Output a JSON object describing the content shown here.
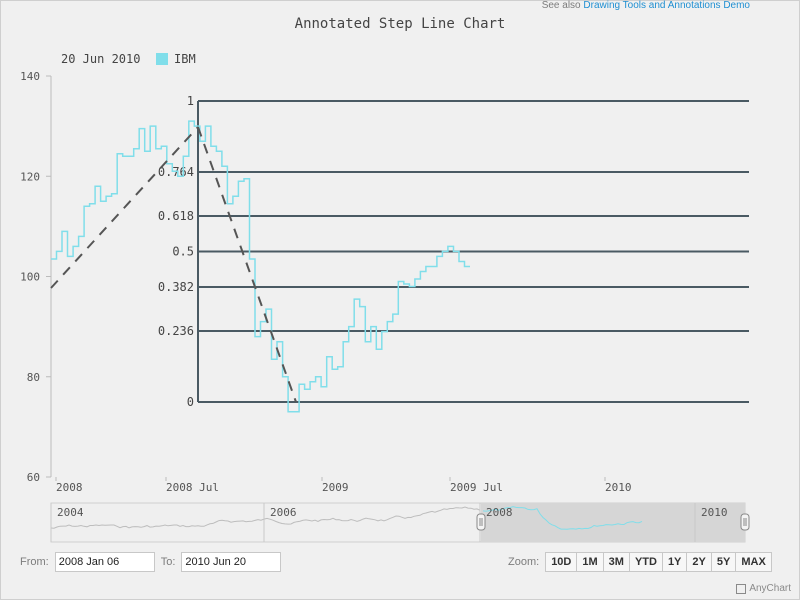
{
  "header": {
    "see_also_prefix": "See also",
    "see_also_link": "Drawing Tools and Annotations Demo"
  },
  "chart_data": {
    "type": "line",
    "title": "Annotated Step Line Chart",
    "legend": {
      "date": "20 Jun 2010",
      "series_name": "IBM",
      "placement": "top-left"
    },
    "ylim": [
      60,
      140
    ],
    "y_ticks": [
      "140",
      "120",
      "100",
      "80",
      "60"
    ],
    "x_ticks": [
      "2008",
      "2008 Jul",
      "2009",
      "2009 Jul",
      "2010"
    ],
    "grid": false,
    "series": [
      {
        "name": "IBM",
        "color": "#80deea",
        "step": true,
        "values": [
          103.5,
          105,
          109,
          104,
          106,
          108,
          114,
          114.5,
          118,
          115,
          116,
          116.5,
          124.5,
          124,
          124,
          125.5,
          129.5,
          125,
          130,
          125.5,
          126,
          122.5,
          121,
          120,
          124,
          131,
          130,
          127,
          130,
          126,
          125,
          122,
          114.5,
          116,
          119,
          119.5,
          103.5,
          88,
          91,
          93.5,
          83.5,
          87,
          80,
          73,
          73,
          78.5,
          77.5,
          79,
          80,
          78,
          84,
          81.5,
          82,
          87,
          90,
          95.5,
          94,
          87,
          90,
          85.5,
          89,
          91,
          92.5,
          99,
          98.5,
          98,
          99.5,
          101,
          102,
          102,
          104,
          105,
          106,
          105,
          103,
          102
        ]
      }
    ],
    "annotations": {
      "trend_line": {
        "from": [
          0,
          98
        ],
        "to": [
          41,
          73
        ]
      },
      "fibonacci_retracement": {
        "levels": [
          "1",
          "0.764",
          "0.618",
          "0.5",
          "0.382",
          "0.236",
          "0"
        ]
      }
    },
    "navigator": {
      "x_ticks": [
        "2004",
        "2006",
        "2008",
        "2010"
      ],
      "selected_range": [
        "2008 Jan 06",
        "2010 Jun 20"
      ]
    }
  },
  "controls": {
    "from_label": "From:",
    "from_value": "2008 Jan 06",
    "to_label": "To:",
    "to_value": "2010 Jun 20",
    "zoom_label": "Zoom:",
    "zoom_buttons": [
      "10D",
      "1M",
      "3M",
      "YTD",
      "1Y",
      "2Y",
      "5Y",
      "MAX"
    ]
  },
  "credits": {
    "text": "AnyChart"
  },
  "colors": {
    "series": "#80deea",
    "annotation": "#4a5a63",
    "trend": "#555555"
  }
}
